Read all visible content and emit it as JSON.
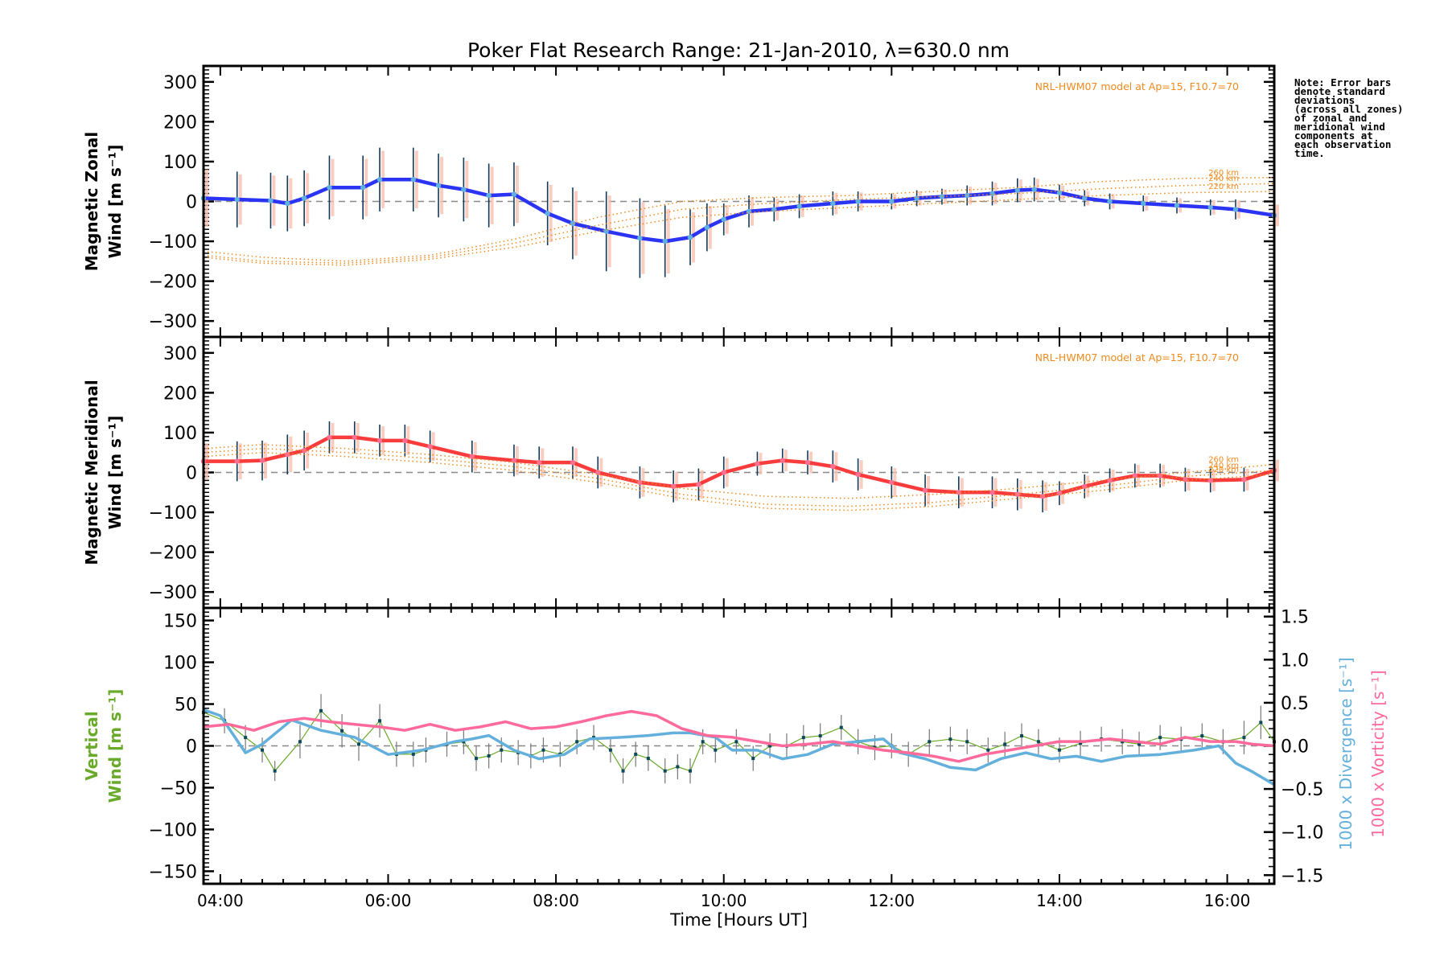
{
  "title": "Poker Flat Research Range: 21-Jan-2010, λ=630.0 nm",
  "note": "Note: Error bars\ndenote standard\ndeviations\n(across all zones)\nof zonal and\nmeridional wind\ncomponents at\neach observation\ntime.",
  "colors": {
    "zonal": "#2b34f2",
    "zonal_marker": "#5fb0e0",
    "meridional": "#f83c3c",
    "meridional_marker": "#ff6f91",
    "model": "#f08a1c",
    "vertical": "#6aaa2a",
    "divergence": "#64b0dc",
    "vorticity": "#ff6a9a",
    "errorbar": "#123a5a",
    "zone_err_a": "#f8c0b0",
    "zone_err_b": "#f8e6b8",
    "zone_err_c": "#b8b8f0",
    "zero": "#888888"
  },
  "chart_data": [
    {
      "type": "line",
      "panel": "zonal",
      "title": "Poker Flat Research Range: 21-Jan-2010, λ=630.0 nm",
      "xlabel": "Time [Hours UT]",
      "ylabel_line1": "Magnetic Zonal",
      "ylabel_line2": "Wind [m s⁻¹]",
      "xlim": [
        3.8,
        16.56
      ],
      "ylim": [
        -340,
        340
      ],
      "yticks": [
        300,
        200,
        100,
        0,
        -100,
        -200,
        -300
      ],
      "zero_line": true,
      "model_label": "NRL-HWM07 model at Ap=15, F10.7=70",
      "model_altitudes": [
        "260 km",
        "240 km",
        "220 km"
      ],
      "series": [
        {
          "name": "Magnetic Zonal Wind",
          "x": [
            3.8,
            4.2,
            4.6,
            4.8,
            5.0,
            5.3,
            5.7,
            5.9,
            6.3,
            6.6,
            6.9,
            7.2,
            7.5,
            7.9,
            8.2,
            8.6,
            9.0,
            9.3,
            9.6,
            9.8,
            10.0,
            10.3,
            10.6,
            10.9,
            11.3,
            11.6,
            12.0,
            12.3,
            12.6,
            12.9,
            13.2,
            13.5,
            13.7,
            14.0,
            14.3,
            14.6,
            15.0,
            15.4,
            15.8,
            16.1,
            16.56
          ],
          "y": [
            8,
            5,
            2,
            -5,
            8,
            35,
            35,
            55,
            55,
            40,
            30,
            15,
            18,
            -30,
            -55,
            -75,
            -92,
            -100,
            -90,
            -65,
            -45,
            -25,
            -20,
            -12,
            -5,
            0,
            0,
            8,
            12,
            15,
            20,
            28,
            30,
            22,
            8,
            0,
            -5,
            -10,
            -15,
            -20,
            -35
          ],
          "err": [
            80,
            70,
            70,
            70,
            70,
            80,
            80,
            80,
            80,
            80,
            80,
            80,
            80,
            80,
            90,
            100,
            100,
            90,
            70,
            60,
            40,
            40,
            30,
            30,
            30,
            25,
            20,
            20,
            20,
            25,
            30,
            30,
            30,
            20,
            20,
            20,
            20,
            20,
            20,
            25,
            30
          ]
        },
        {
          "name": "HWM07 260 km",
          "x": [
            3.8,
            4.5,
            5.5,
            6.5,
            7.5,
            8.5,
            9.5,
            10.5,
            11.5,
            12.5,
            13.5,
            14.5,
            15.5,
            16.56
          ],
          "y": [
            -125,
            -140,
            -150,
            -135,
            -95,
            -40,
            0,
            10,
            15,
            25,
            35,
            50,
            58,
            60
          ]
        },
        {
          "name": "HWM07 240 km",
          "x": [
            3.8,
            4.5,
            5.5,
            6.5,
            7.5,
            8.5,
            9.5,
            10.5,
            11.5,
            12.5,
            13.5,
            14.5,
            15.5,
            16.56
          ],
          "y": [
            -135,
            -150,
            -155,
            -140,
            -105,
            -60,
            -20,
            -5,
            5,
            12,
            20,
            32,
            40,
            45
          ]
        },
        {
          "name": "HWM07 220 km",
          "x": [
            3.8,
            4.5,
            5.5,
            6.5,
            7.5,
            8.5,
            9.5,
            10.5,
            11.5,
            12.5,
            13.5,
            14.5,
            15.5,
            16.56
          ],
          "y": [
            -140,
            -155,
            -160,
            -145,
            -115,
            -75,
            -40,
            -25,
            -15,
            -5,
            5,
            15,
            22,
            25
          ]
        }
      ]
    },
    {
      "type": "line",
      "panel": "meridional",
      "ylabel_line1": "Magnetic Meridional",
      "ylabel_line2": "Wind [m s⁻¹]",
      "xlim": [
        3.8,
        16.56
      ],
      "ylim": [
        -340,
        340
      ],
      "yticks": [
        300,
        200,
        100,
        0,
        -100,
        -200,
        -300
      ],
      "zero_line": true,
      "model_label": "NRL-HWM07 model at Ap=15, F10.7=70",
      "model_altitudes": [
        "260 km",
        "240 km",
        "220 km"
      ],
      "series": [
        {
          "name": "Magnetic Meridional Wind",
          "x": [
            3.8,
            4.2,
            4.5,
            4.8,
            5.0,
            5.3,
            5.6,
            5.9,
            6.2,
            6.5,
            7.0,
            7.5,
            7.8,
            8.2,
            8.5,
            9.0,
            9.4,
            9.7,
            10.0,
            10.4,
            10.7,
            11.0,
            11.3,
            11.6,
            12.0,
            12.4,
            12.8,
            13.2,
            13.5,
            13.8,
            14.0,
            14.3,
            14.6,
            14.9,
            15.2,
            15.5,
            15.8,
            16.2,
            16.56
          ],
          "y": [
            28,
            28,
            30,
            45,
            55,
            88,
            88,
            80,
            80,
            65,
            40,
            30,
            25,
            25,
            0,
            -25,
            -35,
            -30,
            0,
            22,
            30,
            25,
            15,
            -5,
            -25,
            -45,
            -50,
            -50,
            -55,
            -60,
            -52,
            -35,
            -20,
            -8,
            -8,
            -18,
            -20,
            -18,
            5
          ],
          "err": [
            50,
            50,
            50,
            50,
            50,
            40,
            40,
            40,
            40,
            40,
            40,
            40,
            40,
            40,
            40,
            40,
            40,
            40,
            40,
            30,
            30,
            30,
            40,
            40,
            40,
            40,
            40,
            40,
            40,
            40,
            30,
            30,
            30,
            30,
            30,
            30,
            30,
            30,
            30
          ]
        },
        {
          "name": "HWM07 260 km",
          "x": [
            3.8,
            4.5,
            5.5,
            6.5,
            7.5,
            8.5,
            9.5,
            10.5,
            11.5,
            12.5,
            13.5,
            14.5,
            15.5,
            16.56
          ],
          "y": [
            60,
            70,
            60,
            45,
            25,
            -5,
            -40,
            -60,
            -65,
            -55,
            -40,
            -20,
            0,
            20
          ]
        },
        {
          "name": "HWM07 240 km",
          "x": [
            3.8,
            4.5,
            5.5,
            6.5,
            7.5,
            8.5,
            9.5,
            10.5,
            11.5,
            12.5,
            13.5,
            14.5,
            15.5,
            16.56
          ],
          "y": [
            50,
            60,
            50,
            35,
            15,
            -15,
            -55,
            -80,
            -85,
            -75,
            -55,
            -35,
            -10,
            5
          ]
        },
        {
          "name": "HWM07 220 km",
          "x": [
            3.8,
            4.5,
            5.5,
            6.5,
            7.5,
            8.5,
            9.5,
            10.5,
            11.5,
            12.5,
            13.5,
            14.5,
            15.5,
            16.56
          ],
          "y": [
            40,
            50,
            40,
            25,
            5,
            -25,
            -65,
            -90,
            -95,
            -85,
            -65,
            -45,
            -20,
            -5
          ]
        }
      ]
    },
    {
      "type": "line",
      "panel": "vertical",
      "xlabel": "Time [Hours UT]",
      "ylabel_line1": "Vertical",
      "ylabel_line2": "Wind [m s⁻¹]",
      "y2label_div": "1000 x Divergence [s⁻¹]",
      "y2label_vort": "1000 x Vorticity [s⁻¹]",
      "xlim": [
        3.8,
        16.56
      ],
      "ylim": [
        -165,
        165
      ],
      "y2lim": [
        -1.6,
        1.6
      ],
      "yticks": [
        150,
        100,
        50,
        0,
        -50,
        -100,
        -150
      ],
      "y2ticks": [
        1.5,
        1.0,
        0.5,
        0.0,
        -0.5,
        -1.0,
        -1.5
      ],
      "xticks": [
        "04:00",
        "06:00",
        "08:00",
        "10:00",
        "12:00",
        "14:00",
        "16:00"
      ],
      "xtick_values": [
        4,
        6,
        8,
        10,
        12,
        14,
        16
      ],
      "zero_line": true,
      "series": [
        {
          "name": "Vertical Wind",
          "axis": "left",
          "x": [
            3.8,
            4.05,
            4.3,
            4.5,
            4.65,
            4.95,
            5.2,
            5.45,
            5.65,
            5.9,
            6.1,
            6.3,
            6.45,
            6.7,
            6.9,
            7.05,
            7.2,
            7.35,
            7.55,
            7.7,
            7.85,
            8.05,
            8.25,
            8.45,
            8.65,
            8.8,
            8.95,
            9.1,
            9.3,
            9.45,
            9.6,
            9.75,
            9.9,
            10.15,
            10.35,
            10.55,
            10.75,
            10.95,
            11.15,
            11.4,
            11.6,
            11.8,
            12.0,
            12.2,
            12.45,
            12.7,
            12.9,
            13.15,
            13.35,
            13.55,
            13.75,
            14.0,
            14.25,
            14.5,
            14.75,
            14.95,
            15.2,
            15.45,
            15.7,
            15.95,
            16.2,
            16.4,
            16.56
          ],
          "y": [
            40,
            30,
            10,
            -5,
            -30,
            5,
            42,
            18,
            2,
            30,
            -10,
            -10,
            -5,
            2,
            5,
            -15,
            -12,
            -5,
            -8,
            -12,
            -5,
            -10,
            5,
            10,
            -5,
            -30,
            -10,
            -15,
            -30,
            -25,
            -30,
            5,
            -5,
            5,
            -15,
            0,
            0,
            10,
            12,
            22,
            5,
            -2,
            0,
            -10,
            5,
            8,
            5,
            -5,
            2,
            12,
            5,
            -5,
            3,
            8,
            5,
            2,
            10,
            8,
            12,
            5,
            10,
            28,
            5
          ],
          "err": [
            15,
            15,
            15,
            15,
            12,
            20,
            20,
            20,
            20,
            20,
            15,
            15,
            15,
            15,
            15,
            15,
            15,
            15,
            15,
            15,
            15,
            15,
            15,
            15,
            15,
            15,
            15,
            15,
            15,
            15,
            15,
            15,
            15,
            15,
            15,
            15,
            15,
            15,
            15,
            15,
            15,
            15,
            15,
            15,
            15,
            15,
            15,
            15,
            15,
            15,
            15,
            15,
            15,
            15,
            15,
            15,
            15,
            15,
            15,
            15,
            20,
            20,
            20
          ]
        },
        {
          "name": "1000 x Divergence",
          "axis": "right",
          "x": [
            3.8,
            4.0,
            4.3,
            4.5,
            4.85,
            5.2,
            5.6,
            6.0,
            6.4,
            6.8,
            7.0,
            7.2,
            7.5,
            7.8,
            8.1,
            8.4,
            8.8,
            9.1,
            9.4,
            9.6,
            9.9,
            10.1,
            10.4,
            10.7,
            11.0,
            11.3,
            11.6,
            11.9,
            12.1,
            12.4,
            12.7,
            13.0,
            13.3,
            13.6,
            13.9,
            14.2,
            14.5,
            14.8,
            15.2,
            15.6,
            15.9,
            16.1,
            16.3,
            16.56
          ],
          "y": [
            0.42,
            0.35,
            -0.08,
            0.02,
            0.3,
            0.18,
            0.1,
            -0.1,
            -0.05,
            0.05,
            0.08,
            0.12,
            -0.05,
            -0.15,
            -0.1,
            0.08,
            0.1,
            0.12,
            0.15,
            0.15,
            0.1,
            -0.05,
            -0.05,
            -0.15,
            -0.1,
            0.02,
            0.05,
            0.08,
            -0.08,
            -0.15,
            -0.25,
            -0.28,
            -0.15,
            -0.08,
            -0.15,
            -0.12,
            -0.18,
            -0.12,
            -0.1,
            -0.05,
            0.0,
            -0.2,
            -0.3,
            -0.45
          ]
        },
        {
          "name": "1000 x Vorticity",
          "axis": "right",
          "x": [
            3.8,
            4.1,
            4.4,
            4.7,
            5.0,
            5.3,
            5.6,
            5.9,
            6.2,
            6.5,
            6.8,
            7.1,
            7.4,
            7.7,
            8.0,
            8.3,
            8.6,
            8.9,
            9.2,
            9.5,
            9.8,
            10.1,
            10.4,
            10.7,
            11.0,
            11.3,
            11.6,
            11.9,
            12.2,
            12.5,
            12.8,
            13.1,
            13.4,
            13.7,
            14.0,
            14.3,
            14.6,
            14.9,
            15.2,
            15.5,
            15.8,
            16.1,
            16.3,
            16.56
          ],
          "y": [
            0.22,
            0.25,
            0.18,
            0.28,
            0.32,
            0.28,
            0.25,
            0.22,
            0.18,
            0.25,
            0.18,
            0.22,
            0.28,
            0.2,
            0.22,
            0.28,
            0.35,
            0.4,
            0.35,
            0.2,
            0.12,
            0.1,
            0.05,
            0.0,
            0.02,
            0.05,
            0.0,
            -0.05,
            -0.08,
            -0.12,
            -0.18,
            -0.1,
            -0.05,
            0.0,
            0.05,
            0.05,
            0.08,
            0.05,
            0.02,
            0.1,
            0.05,
            0.05,
            0.02,
            0.0
          ]
        }
      ]
    }
  ]
}
